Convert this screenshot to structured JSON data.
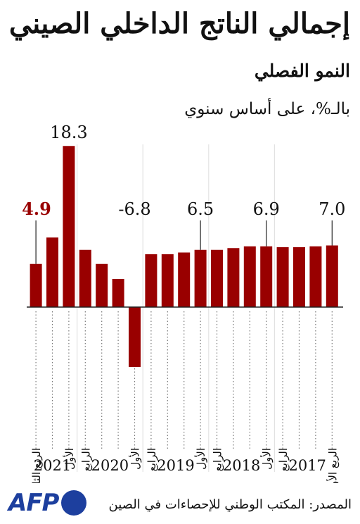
{
  "title": "إجمالي الناتج الداخلي الصيني",
  "subtitle": "النمو الفصلي",
  "unit": "بالـ%، على أساس سنوي",
  "source": "المصدر: المكتب الوطني للإحصاءات في الصين",
  "logo": {
    "text": "AFP",
    "color": "#1d3f9e"
  },
  "colors": {
    "bar": "#990000",
    "highlight": "#990000",
    "text": "#111111"
  },
  "chart_data": {
    "type": "bar",
    "title": "إجمالي الناتج الداخلي الصيني",
    "subtitle": "النمو الفصلي",
    "ylabel": "بالـ%، على أساس سنوي",
    "ylim": [
      -7.5,
      19
    ],
    "quarters": [
      "Q1-2017",
      "Q2-2017",
      "Q3-2017",
      "Q4-2017",
      "Q1-2018",
      "Q2-2018",
      "Q3-2018",
      "Q4-2018",
      "Q1-2019",
      "Q2-2019",
      "Q3-2019",
      "Q4-2019",
      "Q1-2020",
      "Q2-2020",
      "Q3-2020",
      "Q4-2020",
      "Q1-2021",
      "Q2-2021",
      "Q3-2021"
    ],
    "values": [
      7.0,
      6.9,
      6.8,
      6.8,
      6.9,
      6.9,
      6.7,
      6.5,
      6.5,
      6.2,
      6.0,
      6.0,
      -6.8,
      3.2,
      4.9,
      6.5,
      18.3,
      7.9,
      4.9
    ],
    "value_labels": [
      {
        "index": 0,
        "text": "7.0",
        "highlight": false
      },
      {
        "index": 4,
        "text": "6.9",
        "highlight": false
      },
      {
        "index": 8,
        "text": "6.5",
        "highlight": false
      },
      {
        "index": 12,
        "text": "-6.8",
        "highlight": false
      },
      {
        "index": 16,
        "text": "18.3",
        "highlight": false
      },
      {
        "index": 18,
        "text": "4.9",
        "highlight": true
      }
    ],
    "quarter_labels": [
      {
        "index": 0,
        "text": "الربع الأول"
      },
      {
        "index": 3,
        "text": "الرابع"
      },
      {
        "index": 4,
        "text": "الأول"
      },
      {
        "index": 7,
        "text": "الرابع"
      },
      {
        "index": 8,
        "text": "الأول"
      },
      {
        "index": 11,
        "text": "الرابع"
      },
      {
        "index": 12,
        "text": "الأول"
      },
      {
        "index": 15,
        "text": "الرابع"
      },
      {
        "index": 16,
        "text": "الأول"
      },
      {
        "index": 18,
        "text": "الربع الثالث"
      }
    ],
    "years": [
      {
        "label": "2017",
        "start": 0,
        "end": 3
      },
      {
        "label": "2018",
        "start": 4,
        "end": 7
      },
      {
        "label": "2019",
        "start": 8,
        "end": 11
      },
      {
        "label": "2020",
        "start": 12,
        "end": 15
      },
      {
        "label": "2021",
        "start": 16,
        "end": 18
      }
    ]
  }
}
